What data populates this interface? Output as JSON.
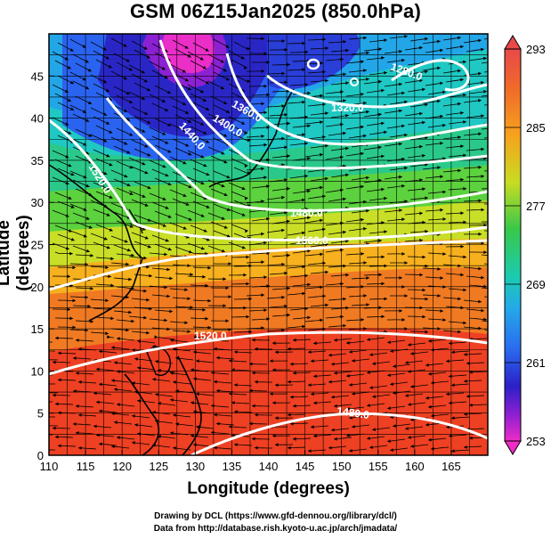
{
  "title": "GSM 06Z15Jan2025 (850.0hPa)",
  "axes": {
    "xlabel": "Longitude (degrees)",
    "ylabel": "Latitude  (degrees)",
    "xticks": [
      "110",
      "115",
      "120",
      "125",
      "130",
      "135",
      "140",
      "145",
      "150",
      "155",
      "160",
      "165"
    ],
    "yticks": [
      "0",
      "5",
      "10",
      "15",
      "20",
      "25",
      "30",
      "35",
      "40",
      "45"
    ],
    "xlim": [
      110,
      170
    ],
    "ylim": [
      0,
      50
    ]
  },
  "colorbar": {
    "labels": [
      "293",
      "285",
      "277",
      "269",
      "261",
      "253"
    ],
    "range": [
      253,
      293
    ]
  },
  "contour_labels": [
    "1280.0",
    "1320.0",
    "1360.0",
    "1400.0",
    "1440.0",
    "1480.0",
    "1520.0",
    "1560.0",
    "1520.0",
    "1480.0"
  ],
  "credits": {
    "line1": "Drawing by DCL (https://www.gfd-dennou.org/library/dcl/)",
    "line2": "Data from http://database.rish.kyoto-u.ac.jp/arch/jmadata/"
  }
}
